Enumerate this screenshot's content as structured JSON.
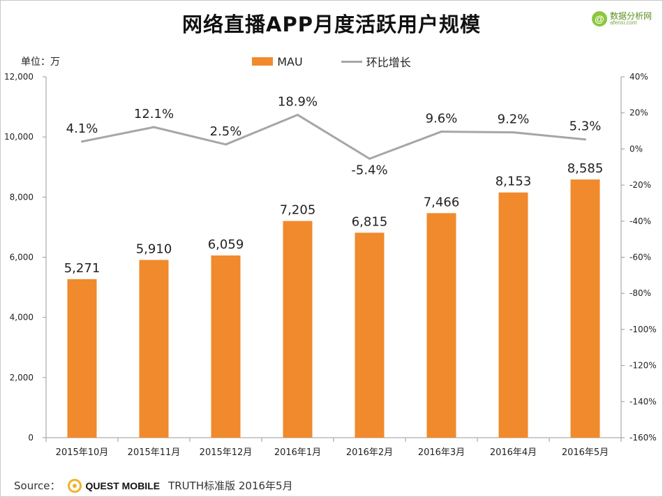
{
  "chart_data": {
    "type": "bar",
    "title": "网络直播APP月度活跃用户规模",
    "unit_label": "单位：万",
    "categories": [
      "2015年10月",
      "2015年11月",
      "2015年12月",
      "2016年1月",
      "2016年2月",
      "2016年3月",
      "2016年4月",
      "2016年5月"
    ],
    "series": [
      {
        "name": "MAU",
        "type": "bar",
        "axis": "left",
        "color": "#f08a2c",
        "values": [
          5271,
          5910,
          6059,
          7205,
          6815,
          7466,
          8153,
          8585
        ],
        "labels": [
          "5,271",
          "5,910",
          "6,059",
          "7,205",
          "6,815",
          "7,466",
          "8,153",
          "8,585"
        ]
      },
      {
        "name": "环比增长",
        "type": "line",
        "axis": "right",
        "color": "#a6a6a6",
        "values": [
          4.1,
          12.1,
          2.5,
          18.9,
          -5.4,
          9.6,
          9.2,
          5.3
        ],
        "labels": [
          "4.1%",
          "12.1%",
          "2.5%",
          "18.9%",
          "-5.4%",
          "9.6%",
          "9.2%",
          "5.3%"
        ]
      }
    ],
    "y_left": {
      "ylim": [
        0,
        12000
      ],
      "ticks": [
        0,
        2000,
        4000,
        6000,
        8000,
        10000,
        12000
      ],
      "tick_labels": [
        "0",
        "2,000",
        "4,000",
        "6,000",
        "8,000",
        "10,000",
        "12,000"
      ]
    },
    "y_right": {
      "ylim": [
        -160,
        40
      ],
      "ticks": [
        -160,
        -140,
        -120,
        -100,
        -80,
        -60,
        -40,
        -20,
        0,
        20,
        40
      ],
      "tick_labels": [
        "-160%",
        "-140%",
        "-120%",
        "-100%",
        "-80%",
        "-60%",
        "-40%",
        "-20%",
        "0%",
        "20%",
        "40%"
      ]
    },
    "grid": false,
    "legend_placement": "top"
  },
  "watermark": {
    "icon": "at-icon",
    "name": "数据分析网",
    "url": "afenxi.com"
  },
  "source": {
    "label": "Source：",
    "brand": "QUEST MOBILE",
    "text": "TRUTH标准版 2016年5月"
  },
  "colors": {
    "bar": "#f08a2c",
    "line": "#a6a6a6",
    "axis": "#9a9a9a"
  }
}
